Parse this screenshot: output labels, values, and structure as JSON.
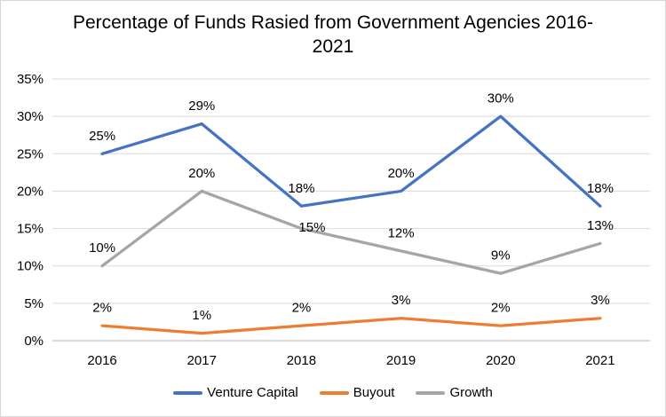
{
  "chart_data": {
    "type": "line",
    "title": "Percentage of Funds Rasied from Government Agencies 2016-2021",
    "title_lines": [
      "Percentage of Funds Rasied from Government Agencies 2016-",
      "2021"
    ],
    "categories": [
      "2016",
      "2017",
      "2018",
      "2019",
      "2020",
      "2021"
    ],
    "series": [
      {
        "name": "Venture Capital",
        "color": "#4472C4",
        "values": [
          25,
          29,
          18,
          20,
          30,
          18
        ],
        "labels": [
          "25%",
          "29%",
          "18%",
          "20%",
          "30%",
          "18%"
        ]
      },
      {
        "name": "Buyout",
        "color": "#ED7D31",
        "values": [
          2,
          1,
          2,
          3,
          2,
          3
        ],
        "labels": [
          "2%",
          "1%",
          "2%",
          "3%",
          "2%",
          "3%"
        ]
      },
      {
        "name": "Growth",
        "color": "#A5A5A5",
        "values": [
          10,
          20,
          15,
          12,
          9,
          13
        ],
        "labels": [
          "10%",
          "20%",
          "15%",
          "12%",
          "9%",
          "13%"
        ]
      }
    ],
    "ylim": [
      0,
      35
    ],
    "ytick_step": 5,
    "ytick_labels": [
      "0%",
      "5%",
      "10%",
      "15%",
      "20%",
      "25%",
      "30%",
      "35%"
    ],
    "grid": "horizontal",
    "legend_position": "bottom",
    "data_labels": "above",
    "colors": {
      "gridline": "#D9D9D9",
      "axis_line": "#CFCFCF",
      "text": "#000000"
    }
  }
}
